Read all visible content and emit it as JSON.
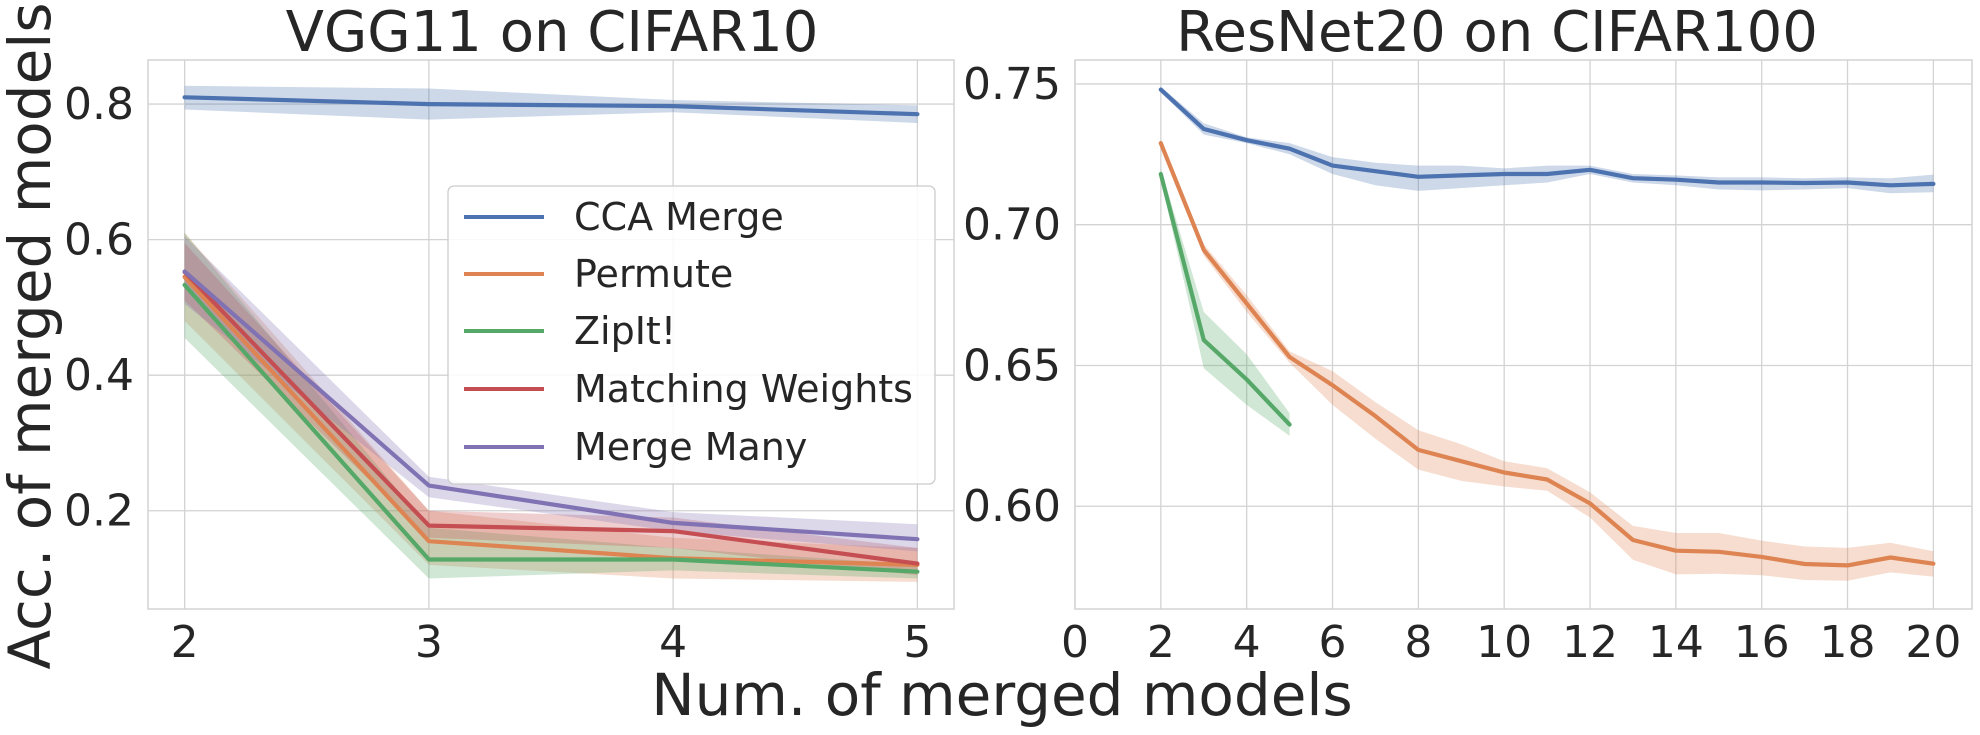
{
  "figure": {
    "xlabel": "Num. of merged models",
    "ylabel": "Acc. of merged models"
  },
  "colors": {
    "CCA Merge": "#4c72b0",
    "Permute": "#dd8452",
    "ZipIt!": "#55a868",
    "Matching Weights": "#c44e52",
    "Merge Many": "#8172b3"
  },
  "chart_data": [
    {
      "type": "line",
      "title": "VGG11 on CIFAR10",
      "xlabel": "",
      "ylabel": "Acc. of merged models",
      "xlim": [
        1.85,
        5.15
      ],
      "ylim": [
        0.055,
        0.865
      ],
      "xticks": [
        2,
        3,
        4,
        5
      ],
      "xtick_labels": [
        "2",
        "3",
        "4",
        "5"
      ],
      "yticks": [
        0.2,
        0.4,
        0.6,
        0.8
      ],
      "ytick_labels": [
        "0.2",
        "0.4",
        "0.6",
        "0.8"
      ],
      "grid": true,
      "legend": {
        "position": "center-right",
        "entries": [
          "CCA Merge",
          "Permute",
          "ZipIt!",
          "Matching Weights",
          "Merge Many"
        ]
      },
      "series": [
        {
          "name": "CCA Merge",
          "x": [
            2,
            3,
            4,
            5
          ],
          "values": [
            0.81,
            0.8,
            0.797,
            0.785
          ],
          "lower": [
            0.792,
            0.777,
            0.788,
            0.772
          ],
          "upper": [
            0.827,
            0.823,
            0.806,
            0.798
          ]
        },
        {
          "name": "Permute",
          "x": [
            2,
            3,
            4,
            5
          ],
          "values": [
            0.545,
            0.155,
            0.13,
            0.12
          ],
          "lower": [
            0.48,
            0.12,
            0.1,
            0.095
          ],
          "upper": [
            0.61,
            0.2,
            0.16,
            0.145
          ]
        },
        {
          "name": "ZipIt!",
          "x": [
            2,
            3,
            4,
            5
          ],
          "values": [
            0.533,
            0.128,
            0.128,
            0.11
          ],
          "lower": [
            0.455,
            0.1,
            0.112,
            0.1
          ],
          "upper": [
            0.61,
            0.175,
            0.145,
            0.12
          ]
        },
        {
          "name": "Matching Weights",
          "x": [
            2,
            3,
            4,
            5
          ],
          "values": [
            0.552,
            0.178,
            0.17,
            0.122
          ],
          "lower": [
            0.51,
            0.16,
            0.145,
            0.105
          ],
          "upper": [
            0.595,
            0.2,
            0.19,
            0.145
          ]
        },
        {
          "name": "Merge Many",
          "x": [
            2,
            3,
            4,
            5
          ],
          "values": [
            0.553,
            0.237,
            0.182,
            0.158
          ],
          "lower": [
            0.505,
            0.22,
            0.17,
            0.14
          ],
          "upper": [
            0.605,
            0.25,
            0.198,
            0.18
          ]
        }
      ]
    },
    {
      "type": "line",
      "title": "ResNet20 on CIFAR100",
      "xlabel": "",
      "ylabel": "",
      "xlim": [
        0,
        20.9
      ],
      "ylim": [
        0.5635,
        0.7585
      ],
      "xticks": [
        0,
        2,
        4,
        6,
        8,
        10,
        12,
        14,
        16,
        18,
        20
      ],
      "xtick_labels": [
        "0",
        "2",
        "4",
        "6",
        "8",
        "10",
        "12",
        "14",
        "16",
        "18",
        "20"
      ],
      "yticks": [
        0.6,
        0.65,
        0.7,
        0.75
      ],
      "ytick_labels": [
        "0.60",
        "0.65",
        "0.70",
        "0.75"
      ],
      "grid": true,
      "legend": null,
      "series": [
        {
          "name": "CCA Merge",
          "x": [
            2,
            3,
            4,
            5,
            6,
            7,
            8,
            9,
            10,
            11,
            12,
            13,
            14,
            15,
            16,
            17,
            18,
            19,
            20
          ],
          "values": [
            0.748,
            0.734,
            0.73,
            0.727,
            0.721,
            0.719,
            0.717,
            0.7175,
            0.718,
            0.718,
            0.7195,
            0.7165,
            0.716,
            0.715,
            0.715,
            0.7148,
            0.715,
            0.714,
            0.7145
          ],
          "lower": [
            0.747,
            0.732,
            0.729,
            0.725,
            0.718,
            0.714,
            0.712,
            0.713,
            0.714,
            0.715,
            0.718,
            0.715,
            0.714,
            0.7125,
            0.7122,
            0.7125,
            0.713,
            0.7112,
            0.7115
          ],
          "upper": [
            0.749,
            0.736,
            0.731,
            0.729,
            0.724,
            0.722,
            0.721,
            0.721,
            0.72,
            0.721,
            0.721,
            0.718,
            0.7175,
            0.7168,
            0.7168,
            0.7165,
            0.7168,
            0.7165,
            0.7178
          ]
        },
        {
          "name": "Permute",
          "x": [
            2,
            3,
            4,
            5,
            6,
            7,
            8,
            9,
            10,
            11,
            12,
            13,
            14,
            15,
            16,
            17,
            18,
            19,
            20
          ],
          "values": [
            0.729,
            0.691,
            0.672,
            0.653,
            0.643,
            0.632,
            0.62,
            0.616,
            0.612,
            0.6095,
            0.601,
            0.588,
            0.5842,
            0.5838,
            0.582,
            0.5795,
            0.579,
            0.5818,
            0.5796
          ],
          "lower": [
            0.728,
            0.689,
            0.669,
            0.651,
            0.636,
            0.624,
            0.613,
            0.609,
            0.607,
            0.6055,
            0.596,
            0.581,
            0.5758,
            0.576,
            0.5755,
            0.5738,
            0.5735,
            0.5765,
            0.575
          ],
          "upper": [
            0.73,
            0.693,
            0.675,
            0.655,
            0.648,
            0.637,
            0.627,
            0.622,
            0.616,
            0.6135,
            0.605,
            0.593,
            0.5905,
            0.5905,
            0.5878,
            0.5857,
            0.5852,
            0.587,
            0.584
          ]
        },
        {
          "name": "ZipIt!",
          "x": [
            2,
            3,
            4,
            5
          ],
          "values": [
            0.718,
            0.659,
            0.645,
            0.629
          ],
          "lower": [
            0.716,
            0.649,
            0.636,
            0.625
          ],
          "upper": [
            0.72,
            0.669,
            0.654,
            0.633
          ]
        }
      ]
    }
  ]
}
